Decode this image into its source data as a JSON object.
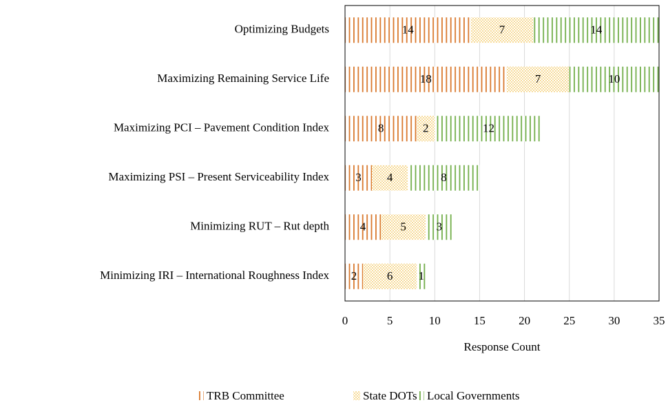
{
  "chart_data": {
    "type": "stacked-bar-horizontal",
    "x_label": "Response Count",
    "categories": [
      "Optimizing Budgets",
      "Maximizing Remaining Service Life",
      "Maximizing PCI – Pavement Condition Index",
      "Maximizing PSI – Present Serviceability Index",
      "Minimizing RUT – Rut depth",
      "Minimizing IRI – International Roughness Index"
    ],
    "series": [
      {
        "name": "TRB Committee",
        "color": "#d9772b",
        "pattern": "lines",
        "values": [
          14,
          18,
          8,
          3,
          4,
          2
        ]
      },
      {
        "name": "State DOTs",
        "color": "#f2c14e",
        "pattern": "dots",
        "values": [
          7,
          7,
          2,
          4,
          5,
          6
        ]
      },
      {
        "name": "Local Governments",
        "color": "#70ad47",
        "pattern": "lines",
        "values": [
          14,
          10,
          12,
          8,
          3,
          1
        ]
      }
    ],
    "xlim": [
      0,
      35
    ],
    "xticks": [
      0,
      5,
      10,
      15,
      20,
      25,
      30,
      35
    ],
    "grid": true,
    "legend": "bottom"
  }
}
